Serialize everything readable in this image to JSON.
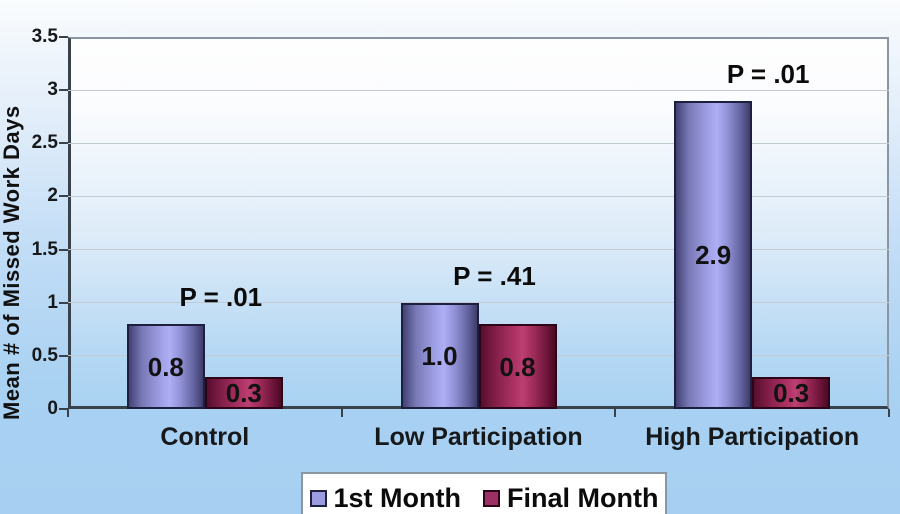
{
  "chart_data": {
    "type": "bar",
    "title": "",
    "xlabel": "",
    "ylabel": "Mean # of Missed Work Days",
    "categories": [
      "Control",
      "Low Participation",
      "High Participation"
    ],
    "series": [
      {
        "name": "1st Month",
        "color": "#9c9ce0",
        "values": [
          0.8,
          1.0,
          2.9
        ]
      },
      {
        "name": "Final Month",
        "color": "#9c3064",
        "values": [
          0.3,
          0.8,
          0.3
        ]
      }
    ],
    "bar_value_labels": [
      [
        "0.8",
        "1.0",
        "2.9"
      ],
      [
        "0.3",
        "0.8",
        "0.3"
      ]
    ],
    "annotations": [
      {
        "category": "Control",
        "label": "P = .01"
      },
      {
        "category": "Low Participation",
        "label": "P = .41"
      },
      {
        "category": "High Participation",
        "label": "P = .01"
      }
    ],
    "ylim": [
      0,
      3.5
    ],
    "ytick_step": 0.5,
    "ytick_labels": [
      "0",
      "0.5",
      "1",
      "1.5",
      "2",
      "2.5",
      "3",
      "3.5"
    ],
    "grid": true,
    "legend_position": "bottom"
  },
  "colors": {
    "background_top": "#fafcfd",
    "background_bottom": "#a6cff1",
    "series_1st_month": "#9c9ce0",
    "series_final_month": "#9c3064",
    "gridline": "#c2cbd4",
    "axis": "#39424b",
    "text": "#111111"
  }
}
